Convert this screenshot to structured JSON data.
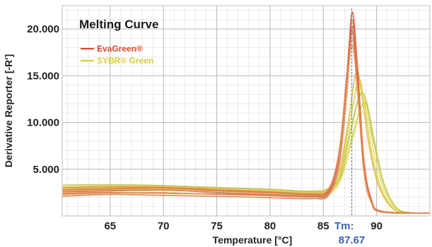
{
  "chart_data": {
    "type": "line",
    "title": "Melting Curve",
    "xlabel": "Temperature [°C]",
    "ylabel": "Derivative Reporter [-R']",
    "xlim": [
      60.5,
      95
    ],
    "ylim": [
      0,
      22500
    ],
    "xticks": [
      65,
      70,
      75,
      80,
      85,
      90
    ],
    "xtick_labels": [
      "65",
      "70",
      "75",
      "80",
      "85",
      "90"
    ],
    "yticks": [
      5000,
      10000,
      15000,
      20000
    ],
    "ytick_labels": [
      "5.000",
      "10.000",
      "15.000",
      "20.000"
    ],
    "grid": true,
    "legend_position": "top-left",
    "legend": [
      {
        "name": "EvaGreen®",
        "color": "#e0462a"
      },
      {
        "name": "SYBR® Green",
        "color": "#d9cc3c"
      }
    ],
    "annotation": {
      "label": "Tm:",
      "value": "87.67",
      "x": 87.67,
      "color": "#3a5fb0"
    },
    "series": [
      {
        "name": "EvaGreen®",
        "color": "#e44a2c",
        "points": [
          [
            60.5,
            2400
          ],
          [
            65,
            2500
          ],
          [
            70,
            2450
          ],
          [
            75,
            2350
          ],
          [
            80,
            2200
          ],
          [
            84,
            2050
          ],
          [
            85.5,
            2400
          ],
          [
            86.5,
            6000
          ],
          [
            87.2,
            14000
          ],
          [
            87.7,
            21800
          ],
          [
            88.2,
            16000
          ],
          [
            88.8,
            6000
          ],
          [
            89.5,
            1800
          ],
          [
            90.5,
            500
          ],
          [
            95,
            300
          ]
        ]
      },
      {
        "name": "EvaGreen®",
        "color": "#e0623a",
        "points": [
          [
            60.5,
            2800
          ],
          [
            65,
            2900
          ],
          [
            70,
            3000
          ],
          [
            75,
            2700
          ],
          [
            80,
            2500
          ],
          [
            84,
            2300
          ],
          [
            85.5,
            2800
          ],
          [
            86.5,
            7000
          ],
          [
            87.2,
            15000
          ],
          [
            87.7,
            21000
          ],
          [
            88.2,
            15000
          ],
          [
            88.8,
            5500
          ],
          [
            89.5,
            1600
          ],
          [
            90.5,
            450
          ],
          [
            95,
            300
          ]
        ]
      },
      {
        "name": "EvaGreen®",
        "color": "#d97845",
        "points": [
          [
            60.5,
            2100
          ],
          [
            65,
            2300
          ],
          [
            70,
            2200
          ],
          [
            75,
            2100
          ],
          [
            80,
            1950
          ],
          [
            84,
            1850
          ],
          [
            85.5,
            2200
          ],
          [
            86.5,
            5500
          ],
          [
            87.2,
            13000
          ],
          [
            87.7,
            20300
          ],
          [
            88.2,
            14500
          ],
          [
            88.8,
            5200
          ],
          [
            89.5,
            1500
          ],
          [
            90.5,
            420
          ],
          [
            95,
            300
          ]
        ]
      },
      {
        "name": "EvaGreen®",
        "color": "#c86a50",
        "points": [
          [
            60.5,
            2600
          ],
          [
            65,
            2700
          ],
          [
            70,
            2800
          ],
          [
            75,
            2500
          ],
          [
            80,
            2300
          ],
          [
            84,
            2150
          ],
          [
            85.5,
            2600
          ],
          [
            86.5,
            6500
          ],
          [
            87.2,
            14500
          ],
          [
            87.7,
            19800
          ],
          [
            88.2,
            14000
          ],
          [
            88.8,
            5000
          ],
          [
            89.5,
            1500
          ],
          [
            90.5,
            420
          ],
          [
            95,
            300
          ]
        ]
      },
      {
        "name": "EvaGreen®",
        "color": "#d8a070",
        "points": [
          [
            60.5,
            2300
          ],
          [
            65,
            2450
          ],
          [
            70,
            2500
          ],
          [
            75,
            2300
          ],
          [
            80,
            2150
          ],
          [
            84,
            2000
          ],
          [
            85.5,
            2300
          ],
          [
            86.5,
            5800
          ],
          [
            87.2,
            13500
          ],
          [
            87.7,
            19000
          ],
          [
            88.2,
            13500
          ],
          [
            88.8,
            4800
          ],
          [
            89.5,
            1400
          ],
          [
            90.5,
            400
          ],
          [
            95,
            300
          ]
        ]
      },
      {
        "name": "EvaGreen®",
        "color": "#e8894a",
        "points": [
          [
            60.5,
            3000
          ],
          [
            65,
            3100
          ],
          [
            70,
            3050
          ],
          [
            75,
            2850
          ],
          [
            80,
            2600
          ],
          [
            84,
            2400
          ],
          [
            85.5,
            2900
          ],
          [
            86.5,
            6800
          ],
          [
            87.2,
            14200
          ],
          [
            87.7,
            18300
          ],
          [
            88.2,
            13800
          ],
          [
            88.8,
            5200
          ],
          [
            89.5,
            1600
          ],
          [
            90.5,
            450
          ],
          [
            95,
            300
          ]
        ]
      },
      {
        "name": "SYBR® Green",
        "color": "#e0b838",
        "points": [
          [
            60.5,
            3100
          ],
          [
            65,
            3200
          ],
          [
            70,
            3150
          ],
          [
            75,
            3000
          ],
          [
            80,
            2800
          ],
          [
            84,
            2600
          ],
          [
            85.5,
            2900
          ],
          [
            86.5,
            4800
          ],
          [
            87.4,
            10500
          ],
          [
            88.1,
            15500
          ],
          [
            88.6,
            13000
          ],
          [
            89.3,
            7500
          ],
          [
            90.2,
            3200
          ],
          [
            91.5,
            800
          ],
          [
            93,
            350
          ],
          [
            95,
            300
          ]
        ]
      },
      {
        "name": "SYBR® Green",
        "color": "#d9cc3c",
        "points": [
          [
            60.5,
            2700
          ],
          [
            65,
            2800
          ],
          [
            70,
            2900
          ],
          [
            75,
            2700
          ],
          [
            80,
            2500
          ],
          [
            84,
            2350
          ],
          [
            85.5,
            2600
          ],
          [
            86.5,
            4200
          ],
          [
            87.4,
            9500
          ],
          [
            88.3,
            14500
          ],
          [
            88.8,
            12500
          ],
          [
            89.5,
            7000
          ],
          [
            90.4,
            3000
          ],
          [
            91.6,
            750
          ],
          [
            93,
            330
          ],
          [
            95,
            300
          ]
        ]
      },
      {
        "name": "SYBR® Green",
        "color": "#e5d86a",
        "points": [
          [
            60.5,
            2500
          ],
          [
            65,
            2650
          ],
          [
            70,
            2700
          ],
          [
            75,
            2600
          ],
          [
            80,
            2400
          ],
          [
            84,
            2250
          ],
          [
            85.5,
            2500
          ],
          [
            86.5,
            3800
          ],
          [
            87.5,
            8500
          ],
          [
            88.4,
            13000
          ],
          [
            89.0,
            11800
          ],
          [
            89.7,
            7000
          ],
          [
            90.6,
            3000
          ],
          [
            91.8,
            700
          ],
          [
            93.2,
            320
          ],
          [
            95,
            300
          ]
        ]
      },
      {
        "name": "SYBR® Green",
        "color": "#c8d040",
        "points": [
          [
            60.5,
            2900
          ],
          [
            65,
            3000
          ],
          [
            70,
            3050
          ],
          [
            75,
            2850
          ],
          [
            80,
            2650
          ],
          [
            84,
            2500
          ],
          [
            85.5,
            2750
          ],
          [
            86.6,
            4000
          ],
          [
            87.6,
            8000
          ],
          [
            88.5,
            11500
          ],
          [
            89.1,
            11800
          ],
          [
            89.8,
            8000
          ],
          [
            90.7,
            3500
          ],
          [
            91.9,
            850
          ],
          [
            93.3,
            340
          ],
          [
            95,
            300
          ]
        ]
      },
      {
        "name": "SYBR® Green",
        "color": "#ede28a",
        "points": [
          [
            60.5,
            2200
          ],
          [
            65,
            2350
          ],
          [
            70,
            2400
          ],
          [
            75,
            2300
          ],
          [
            80,
            2150
          ],
          [
            84,
            2050
          ],
          [
            85.5,
            2300
          ],
          [
            86.6,
            3600
          ],
          [
            87.6,
            7500
          ],
          [
            88.5,
            10800
          ],
          [
            89.1,
            11000
          ],
          [
            89.8,
            7500
          ],
          [
            90.8,
            3200
          ],
          [
            92,
            800
          ],
          [
            93.4,
            330
          ],
          [
            95,
            300
          ]
        ]
      },
      {
        "name": "SYBR® Green",
        "color": "#b9c84a",
        "points": [
          [
            60.5,
            3300
          ],
          [
            65,
            3350
          ],
          [
            70,
            3250
          ],
          [
            75,
            3050
          ],
          [
            80,
            2850
          ],
          [
            84,
            2650
          ],
          [
            85.5,
            2950
          ],
          [
            86.6,
            4400
          ],
          [
            87.5,
            9000
          ],
          [
            88.4,
            12800
          ],
          [
            89.0,
            12500
          ],
          [
            89.7,
            8200
          ],
          [
            90.6,
            3600
          ],
          [
            91.8,
            900
          ],
          [
            93.2,
            350
          ],
          [
            95,
            300
          ]
        ]
      }
    ]
  }
}
